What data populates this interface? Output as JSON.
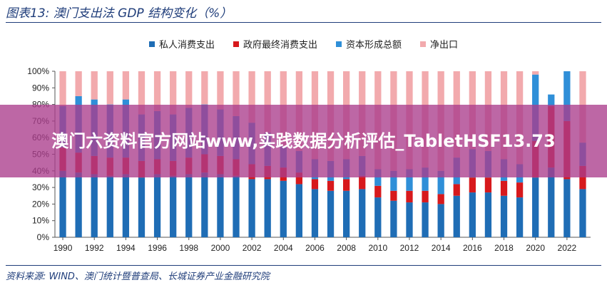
{
  "figure": {
    "title": "图表13:  澳门支出法 GDP 结构变化（%）",
    "source": "资料来源:  WIND、澳门统计暨普查局、长城证券产业金融研究院"
  },
  "overlay": {
    "text": "澳门六资料官方网站www,实践数据分析评估_TabletHSF13.73"
  },
  "chart_data": {
    "type": "bar",
    "stacked": true,
    "categories": [
      "1990",
      "1991",
      "1992",
      "1993",
      "1994",
      "1995",
      "1996",
      "1997",
      "1998",
      "1999",
      "2000",
      "2001",
      "2002",
      "2003",
      "2004",
      "2005",
      "2006",
      "2007",
      "2008",
      "2009",
      "2010",
      "2011",
      "2012",
      "2013",
      "2014",
      "2015",
      "2016",
      "2017",
      "2018",
      "2019",
      "2020",
      "2021",
      "2022",
      "2023"
    ],
    "x_tick_labels": [
      "1990",
      "1992",
      "1994",
      "1996",
      "1998",
      "2000",
      "2002",
      "2004",
      "2006",
      "2008",
      "2010",
      "2012",
      "2014",
      "2016",
      "2018",
      "2020",
      "2022"
    ],
    "y_tick_labels": [
      "0%",
      "10%",
      "20%",
      "30%",
      "40%",
      "50%",
      "60%",
      "70%",
      "80%",
      "90%",
      "100%"
    ],
    "ylim": [
      0,
      100
    ],
    "legend_position": "top",
    "series": [
      {
        "name": "私人消费支出",
        "color": "#1f6db5",
        "values": [
          40,
          39,
          38,
          37,
          38,
          36,
          38,
          37,
          38,
          39,
          38,
          37,
          35,
          35,
          34,
          32,
          29,
          28,
          28,
          29,
          24,
          22,
          21,
          21,
          20,
          25,
          27,
          27,
          25,
          24,
          36,
          42,
          35,
          29
        ]
      },
      {
        "name": "政府最终消费支出",
        "color": "#d7191c",
        "values": [
          14,
          12,
          11,
          11,
          10,
          10,
          9,
          9,
          10,
          11,
          11,
          10,
          9,
          8,
          8,
          7,
          6,
          6,
          7,
          8,
          7,
          6,
          7,
          7,
          6,
          7,
          9,
          9,
          9,
          9,
          22,
          37,
          35,
          14
        ]
      },
      {
        "name": "资本形成总额",
        "color": "#2f8fd8",
        "values": [
          25,
          34,
          34,
          32,
          35,
          28,
          29,
          28,
          30,
          30,
          28,
          26,
          25,
          20,
          13,
          13,
          12,
          12,
          12,
          12,
          10,
          12,
          13,
          14,
          14,
          16,
          17,
          16,
          13,
          11,
          40,
          7,
          30,
          14
        ]
      },
      {
        "name": "净出口",
        "color": "#f2aaad",
        "values": [
          21,
          15,
          17,
          20,
          17,
          26,
          24,
          26,
          22,
          20,
          23,
          27,
          31,
          37,
          45,
          48,
          53,
          54,
          53,
          51,
          59,
          60,
          59,
          58,
          60,
          52,
          47,
          48,
          53,
          56,
          2,
          0,
          0,
          43
        ]
      }
    ]
  }
}
